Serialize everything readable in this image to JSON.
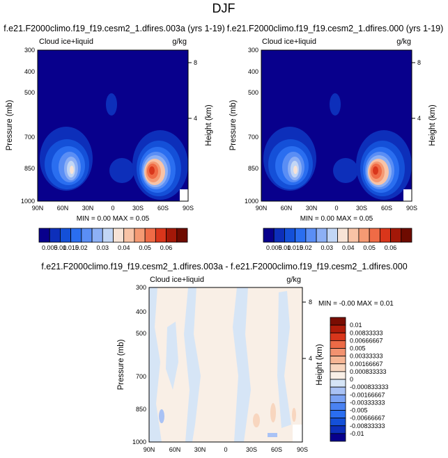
{
  "title": "DJF",
  "panels": [
    {
      "header": "f.e21.F2000climo.f19_f19.cesm2_1.dfires.003a (yrs 1-19)",
      "left_label": "Cloud ice+liquid",
      "right_label": "g/kg",
      "ylabel": "Pressure (mb)",
      "ylabel_right": "Height (km)",
      "minmax": "MIN =  0.00  MAX =  0.05"
    },
    {
      "header": "f.e21.F2000climo.f19_f19.cesm2_1.dfires.000 (yrs 1-19)",
      "left_label": "Cloud ice+liquid",
      "right_label": "g/kg",
      "ylabel": "Pressure (mb)",
      "ylabel_right": "Height (km)",
      "minmax": "MIN =  0.00  MAX =  0.05"
    },
    {
      "header": "f.e21.F2000climo.f19_f19.cesm2_1.dfires.003a - f.e21.F2000climo.f19_f19.cesm2_1.dfires.000",
      "left_label": "Cloud ice+liquid",
      "right_label": "g/kg",
      "ylabel": "Pressure (mb)",
      "ylabel_right": "Height (km)",
      "minmax": "MIN = -0.00  MAX =  0.01"
    }
  ],
  "colors": {
    "levels13": [
      "#08008c",
      "#0d2fba",
      "#1450d8",
      "#2a6ef0",
      "#5a8ef5",
      "#8db0f5",
      "#c2d6f5",
      "#f7e3d6",
      "#f8c3a6",
      "#f59a73",
      "#ef6b46",
      "#d9361b",
      "#a31808",
      "#6e0b00"
    ],
    "levels15": [
      "#08008c",
      "#0d2fba",
      "#1450d8",
      "#2a6ef0",
      "#4a82f2",
      "#7aa2f4",
      "#a9c2f5",
      "#d6e5f6",
      "#f9efe6",
      "#f8d6bf",
      "#f6b695",
      "#f29270",
      "#ec6a46",
      "#d9361b",
      "#b01c0a",
      "#7a0d03"
    ]
  },
  "chart_data": [
    {
      "type": "heatmap",
      "title": "DJF",
      "xlabel": "",
      "ylabel": "Pressure (mb)",
      "y2label": "Height (km)",
      "x_ticks": [
        "90N",
        "60N",
        "30N",
        "0",
        "30S",
        "60S",
        "90S"
      ],
      "x_range": [
        90,
        -90
      ],
      "y_ticks": [
        300,
        400,
        500,
        700,
        850,
        1000
      ],
      "y_range": [
        300,
        1000
      ],
      "y_scale": "log",
      "y2_ticks": [
        8,
        4
      ],
      "colorbar_labels": [
        "0.005",
        "0.01",
        "0.015",
        "0.02",
        "0.03",
        "0.04",
        "0.05",
        "0.06"
      ],
      "min": 0.0,
      "max": 0.05,
      "features": [
        {
          "lat": 72,
          "p": 830,
          "value": 0.03
        },
        {
          "lat": 2,
          "p": 530,
          "value": 0.01
        },
        {
          "lat": -47,
          "p": 860,
          "value": 0.05
        }
      ]
    },
    {
      "type": "heatmap",
      "xlabel": "",
      "ylabel": "Pressure (mb)",
      "y2label": "Height (km)",
      "x_ticks": [
        "90N",
        "60N",
        "30N",
        "0",
        "30S",
        "60S",
        "90S"
      ],
      "x_range": [
        90,
        -90
      ],
      "y_ticks": [
        300,
        400,
        500,
        700,
        850,
        1000
      ],
      "y_range": [
        300,
        1000
      ],
      "y_scale": "log",
      "y2_ticks": [
        8,
        4
      ],
      "colorbar_labels": [
        "0.005",
        "0.01",
        "0.015",
        "0.02",
        "0.03",
        "0.04",
        "0.05",
        "0.06"
      ],
      "min": 0.0,
      "max": 0.05,
      "features": [
        {
          "lat": 72,
          "p": 830,
          "value": 0.03
        },
        {
          "lat": 2,
          "p": 530,
          "value": 0.01
        },
        {
          "lat": -47,
          "p": 860,
          "value": 0.05
        }
      ]
    },
    {
      "type": "heatmap",
      "xlabel": "",
      "ylabel": "Pressure (mb)",
      "y2label": "Height (km)",
      "x_ticks": [
        "90N",
        "60N",
        "30N",
        "0",
        "30S",
        "60S",
        "90S"
      ],
      "x_range": [
        90,
        -90
      ],
      "y_ticks": [
        300,
        400,
        500,
        700,
        850,
        1000
      ],
      "y_range": [
        300,
        1000
      ],
      "y_scale": "log",
      "y2_ticks": [
        8,
        4
      ],
      "colorbar_labels": [
        "0.01",
        "0.00833333",
        "0.00666667",
        "0.005",
        "0.00333333",
        "0.00166667",
        "0.000833333",
        "0",
        "-0.000833333",
        "-0.00166667",
        "-0.00333333",
        "-0.005",
        "-0.00666667",
        "-0.00833333",
        "-0.01"
      ],
      "min": -0.0,
      "max": 0.01
    }
  ]
}
